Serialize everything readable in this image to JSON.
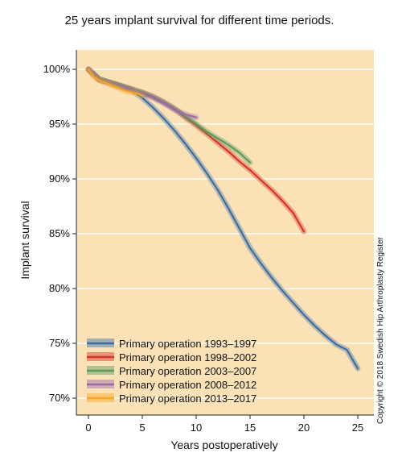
{
  "chart_data": {
    "type": "line",
    "title": "25 years implant survival for different time periods.",
    "xlabel": "Years postoperatively",
    "ylabel": "Implant survival",
    "xlim": [
      0,
      25
    ],
    "ylim": [
      70,
      100
    ],
    "xticks": [
      0,
      5,
      10,
      15,
      20,
      25
    ],
    "yticks": [
      70,
      75,
      80,
      85,
      90,
      95,
      100
    ],
    "ytick_labels": [
      "70%",
      "75%",
      "80%",
      "85%",
      "90%",
      "95%",
      "100%"
    ],
    "grid": true,
    "legend_position": "bottom-left",
    "background_color": "#fbe2b6",
    "series": [
      {
        "name": "Primary operation 1993–1997",
        "color": "#3a6ea5",
        "x": [
          0,
          1,
          2,
          3,
          4,
          5,
          6,
          7,
          8,
          9,
          10,
          11,
          12,
          13,
          14,
          15,
          16,
          17,
          18,
          19,
          20,
          21,
          22,
          23,
          24,
          25
        ],
        "y": [
          100,
          99.1,
          98.8,
          98.5,
          98.1,
          97.4,
          96.5,
          95.5,
          94.4,
          93.2,
          91.9,
          90.5,
          89.0,
          87.3,
          85.5,
          83.7,
          82.3,
          81.0,
          79.8,
          78.7,
          77.6,
          76.6,
          75.7,
          74.9,
          74.4,
          72.7
        ]
      },
      {
        "name": "Primary operation 1998–2002",
        "color": "#d7342b",
        "x": [
          0,
          1,
          2,
          3,
          4,
          5,
          6,
          7,
          8,
          9,
          10,
          11,
          12,
          13,
          14,
          15,
          16,
          17,
          18,
          19,
          20
        ],
        "y": [
          100,
          99.1,
          98.8,
          98.5,
          98.2,
          97.9,
          97.5,
          97.0,
          96.4,
          95.6,
          94.9,
          94.1,
          93.3,
          92.5,
          91.6,
          90.8,
          89.9,
          89.0,
          88.0,
          86.9,
          85.2
        ]
      },
      {
        "name": "Primary operation 2003–2007",
        "color": "#5a9a5e",
        "x": [
          0,
          1,
          2,
          3,
          4,
          5,
          6,
          7,
          8,
          9,
          10,
          11,
          12,
          13,
          14,
          15
        ],
        "y": [
          100,
          99.1,
          98.8,
          98.5,
          98.2,
          97.9,
          97.5,
          97.0,
          96.4,
          95.7,
          95.0,
          94.3,
          93.7,
          93.1,
          92.4,
          91.5
        ]
      },
      {
        "name": "Primary operation 2008–2012",
        "color": "#9b6aa8",
        "x": [
          0,
          1,
          2,
          3,
          4,
          5,
          6,
          7,
          8,
          9,
          10
        ],
        "y": [
          100,
          99.0,
          98.7,
          98.4,
          98.1,
          97.8,
          97.4,
          96.9,
          96.3,
          95.9,
          95.6
        ]
      },
      {
        "name": "Primary operation 2013–2017",
        "color": "#f5a623",
        "x": [
          0,
          0.5,
          1,
          1.5,
          2,
          2.5,
          3,
          3.5,
          4,
          4.5,
          5
        ],
        "y": [
          100,
          99.3,
          99.0,
          98.8,
          98.6,
          98.4,
          98.2,
          98.0,
          97.9,
          97.8,
          97.6
        ]
      }
    ]
  },
  "copyright": "Copyright © 2018 Swedish Hip Arthroplasty Register"
}
